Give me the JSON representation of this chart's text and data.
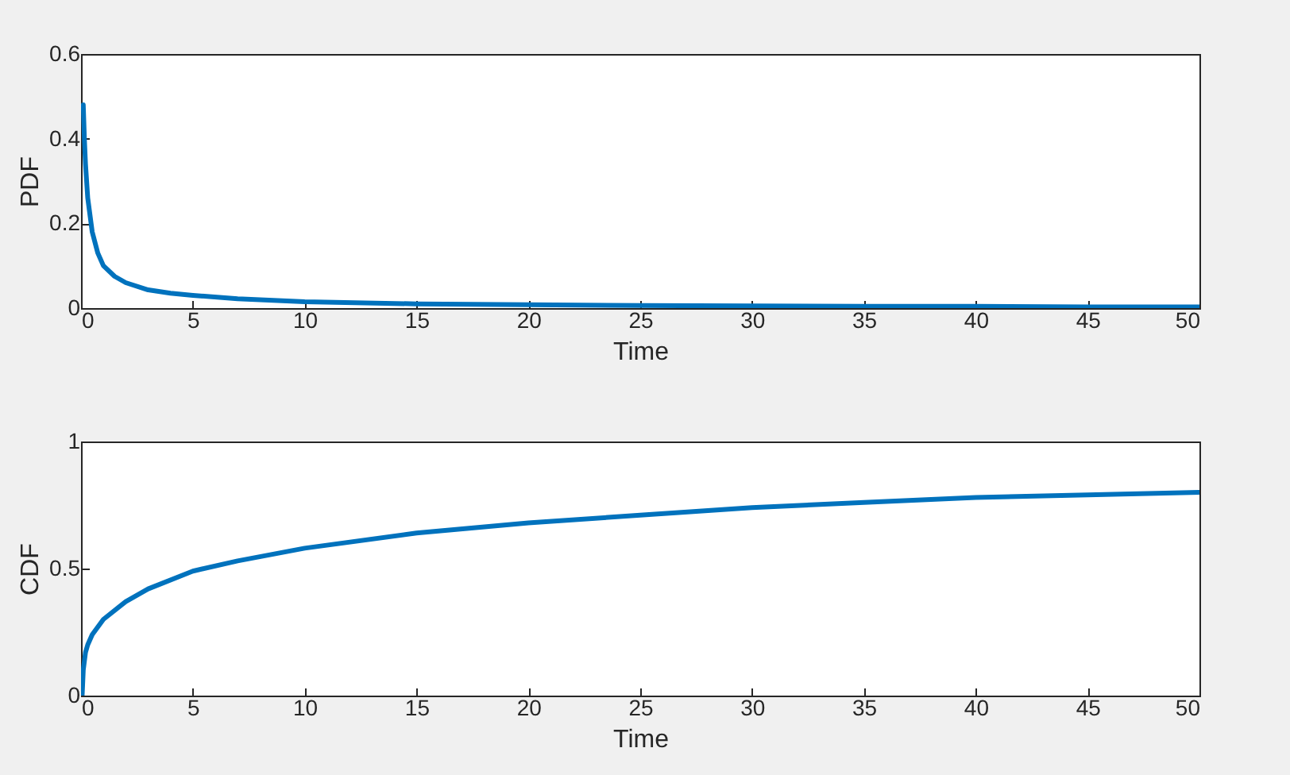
{
  "chart_data": [
    {
      "type": "line",
      "xlabel": "Time",
      "ylabel": "PDF",
      "xlim": [
        0,
        50
      ],
      "ylim": [
        0,
        0.6
      ],
      "xticks": [
        0,
        5,
        10,
        15,
        20,
        25,
        30,
        35,
        40,
        45,
        50
      ],
      "yticks": [
        0,
        0.2,
        0.4,
        0.6
      ],
      "grid": false,
      "series": [
        {
          "color": "#0072bd",
          "x": [
            0.1,
            0.15,
            0.2,
            0.3,
            0.5,
            0.75,
            1,
            1.5,
            2,
            3,
            4,
            5,
            7,
            10,
            15,
            20,
            25,
            30,
            35,
            40,
            45,
            50
          ],
          "values": [
            0.48,
            0.4,
            0.34,
            0.26,
            0.18,
            0.13,
            0.1,
            0.075,
            0.06,
            0.043,
            0.035,
            0.03,
            0.022,
            0.015,
            0.01,
            0.008,
            0.006,
            0.005,
            0.004,
            0.004,
            0.003,
            0.003
          ]
        }
      ]
    },
    {
      "type": "line",
      "xlabel": "Time",
      "ylabel": "CDF",
      "xlim": [
        0,
        50
      ],
      "ylim": [
        0,
        1
      ],
      "xticks": [
        0,
        5,
        10,
        15,
        20,
        25,
        30,
        35,
        40,
        45,
        50
      ],
      "yticks": [
        0,
        0.5,
        1
      ],
      "grid": false,
      "series": [
        {
          "color": "#0072bd",
          "x": [
            0.05,
            0.1,
            0.2,
            0.3,
            0.5,
            1,
            2,
            3,
            5,
            7,
            10,
            15,
            20,
            25,
            30,
            35,
            40,
            45,
            50
          ],
          "values": [
            0,
            0.1,
            0.17,
            0.2,
            0.24,
            0.3,
            0.37,
            0.42,
            0.49,
            0.53,
            0.58,
            0.64,
            0.68,
            0.71,
            0.74,
            0.76,
            0.78,
            0.79,
            0.8
          ]
        }
      ]
    }
  ]
}
